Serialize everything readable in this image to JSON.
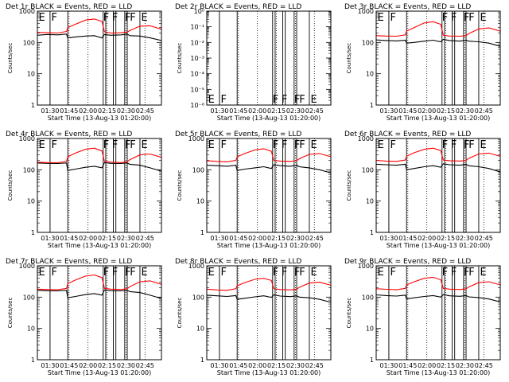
{
  "x_tick_labels": [
    "01:30",
    "01:45",
    "02:00",
    "02:15",
    "02:30",
    "02:45"
  ],
  "y_tick_labels_log": [
    "1",
    "10",
    "100",
    "1000"
  ],
  "y_tick_labels_small": [
    "10⁻⁶",
    "10⁻⁵",
    "10⁻⁴",
    "10⁻³",
    "10⁻²",
    "10⁻¹",
    "10⁰"
  ],
  "colors": {
    "events": "#000000",
    "lld": "#ff0000",
    "axes": "#000000",
    "background": "#ffffff"
  },
  "chart_data": [
    {
      "type": "line",
      "title": "Det 1r BLACK = Events, RED = LLD",
      "xlabel": "Start Time (13-Aug-13 01:20:00)",
      "ylabel": "Counts/sec",
      "y_scale": "log",
      "ylim": [
        1,
        1000
      ],
      "xlim": [
        "01:20",
        "02:58"
      ],
      "grid": "dotted vertical lines at time ticks",
      "flags": [
        "E",
        "F",
        "F",
        "F",
        "F",
        "F",
        "E"
      ],
      "x": [
        "01:20",
        "01:28",
        "01:36",
        "01:43",
        "01:44",
        "01:50",
        "01:58",
        "02:05",
        "02:11",
        "02:13",
        "02:18",
        "02:26",
        "02:31",
        "02:33",
        "02:41",
        "02:49",
        "02:58"
      ],
      "series": [
        {
          "name": "Events",
          "values": [
            170,
            180,
            175,
            185,
            140,
            150,
            160,
            165,
            140,
            180,
            170,
            175,
            185,
            165,
            160,
            140,
            115
          ]
        },
        {
          "name": "LLD",
          "values": [
            210,
            205,
            200,
            225,
            300,
            380,
            520,
            560,
            470,
            220,
            200,
            205,
            215,
            240,
            330,
            340,
            265
          ]
        }
      ]
    },
    {
      "type": "line",
      "title": "Det 2r BLACK = Events, RED = LLD",
      "xlabel": "Start Time (13-Aug-13 01:20:00)",
      "ylabel": "Counts/sec",
      "y_scale": "log",
      "ylim": [
        1e-06,
        1
      ],
      "xlim": [
        "01:20",
        "02:58"
      ],
      "grid": "dotted vertical lines at time ticks",
      "flags": [
        "E",
        "F",
        "F",
        "F",
        "F",
        "F",
        "E"
      ],
      "x": [],
      "series": []
    },
    {
      "type": "line",
      "title": "Det 3r BLACK = Events, RED = LLD",
      "xlabel": "Start Time (13-Aug-13 01:20:00)",
      "ylabel": "Counts/sec",
      "y_scale": "log",
      "ylim": [
        1,
        1000
      ],
      "xlim": [
        "01:20",
        "02:58"
      ],
      "grid": "dotted vertical lines at time ticks",
      "flags": [
        "E",
        "F",
        "F",
        "F",
        "F",
        "F",
        "E"
      ],
      "x": [
        "01:20",
        "01:28",
        "01:36",
        "01:43",
        "01:44",
        "01:50",
        "01:58",
        "02:05",
        "02:11",
        "02:13",
        "02:18",
        "02:26",
        "02:31",
        "02:33",
        "02:41",
        "02:49",
        "02:58"
      ],
      "series": [
        {
          "name": "Events",
          "values": [
            120,
            115,
            112,
            118,
            95,
            100,
            110,
            118,
            105,
            125,
            115,
            110,
            118,
            110,
            105,
            95,
            75
          ]
        },
        {
          "name": "LLD",
          "values": [
            165,
            160,
            158,
            175,
            230,
            300,
            420,
            460,
            380,
            170,
            160,
            158,
            165,
            190,
            270,
            290,
            230
          ]
        }
      ]
    },
    {
      "type": "line",
      "title": "Det 4r BLACK = Events, RED = LLD",
      "xlabel": "Start Time (13-Aug-13 01:20:00)",
      "ylabel": "Counts/sec",
      "y_scale": "log",
      "ylim": [
        1,
        1000
      ],
      "xlim": [
        "01:20",
        "02:58"
      ],
      "grid": "dotted vertical lines at time ticks",
      "flags": [
        "E",
        "F",
        "F",
        "F",
        "F",
        "F",
        "E"
      ],
      "x": [
        "01:20",
        "01:28",
        "01:36",
        "01:43",
        "01:44",
        "01:50",
        "01:58",
        "02:05",
        "02:11",
        "02:13",
        "02:18",
        "02:26",
        "02:31",
        "02:33",
        "02:41",
        "02:49",
        "02:58"
      ],
      "series": [
        {
          "name": "Events",
          "values": [
            165,
            160,
            158,
            165,
            95,
            105,
            120,
            130,
            115,
            170,
            160,
            158,
            165,
            150,
            140,
            115,
            90
          ]
        },
        {
          "name": "LLD",
          "values": [
            175,
            170,
            168,
            185,
            260,
            340,
            450,
            490,
            400,
            185,
            175,
            170,
            180,
            210,
            300,
            320,
            250
          ]
        }
      ]
    },
    {
      "type": "line",
      "title": "Det 5r BLACK = Events, RED = LLD",
      "xlabel": "Start Time (13-Aug-13 01:20:00)",
      "ylabel": "Counts/sec",
      "y_scale": "log",
      "ylim": [
        1,
        1000
      ],
      "xlim": [
        "01:20",
        "02:58"
      ],
      "grid": "dotted vertical lines at time ticks",
      "flags": [
        "E",
        "F",
        "F",
        "F",
        "F",
        "F",
        "E"
      ],
      "x": [
        "01:20",
        "01:28",
        "01:36",
        "01:43",
        "01:44",
        "01:50",
        "01:58",
        "02:05",
        "02:11",
        "02:13",
        "02:18",
        "02:26",
        "02:31",
        "02:33",
        "02:41",
        "02:49",
        "02:58"
      ],
      "series": [
        {
          "name": "Events",
          "values": [
            140,
            135,
            130,
            140,
            95,
            105,
            115,
            125,
            110,
            145,
            135,
            130,
            140,
            125,
            115,
            100,
            80
          ]
        },
        {
          "name": "LLD",
          "values": [
            195,
            185,
            180,
            200,
            260,
            330,
            430,
            470,
            390,
            200,
            190,
            185,
            195,
            225,
            310,
            330,
            260
          ]
        }
      ]
    },
    {
      "type": "line",
      "title": "Det 6r BLACK = Events, RED = LLD",
      "xlabel": "Start Time (13-Aug-13 01:20:00)",
      "ylabel": "Counts/sec",
      "y_scale": "log",
      "ylim": [
        1,
        1000
      ],
      "xlim": [
        "01:20",
        "02:58"
      ],
      "grid": "dotted vertical lines at time ticks",
      "flags": [
        "E",
        "F",
        "F",
        "F",
        "F",
        "F",
        "E"
      ],
      "x": [
        "01:20",
        "01:28",
        "01:36",
        "01:43",
        "01:44",
        "01:50",
        "01:58",
        "02:05",
        "02:11",
        "02:13",
        "02:18",
        "02:26",
        "02:31",
        "02:33",
        "02:41",
        "02:49",
        "02:58"
      ],
      "series": [
        {
          "name": "Events",
          "values": [
            150,
            145,
            140,
            150,
            100,
            110,
            125,
            135,
            120,
            155,
            145,
            140,
            150,
            135,
            125,
            110,
            85
          ]
        },
        {
          "name": "LLD",
          "values": [
            200,
            190,
            185,
            205,
            270,
            350,
            450,
            490,
            410,
            205,
            195,
            190,
            200,
            230,
            320,
            340,
            270
          ]
        }
      ]
    },
    {
      "type": "line",
      "title": "Det 7r BLACK = Events, RED = LLD",
      "xlabel": "Start Time (13-Aug-13 01:20:00)",
      "ylabel": "Counts/sec",
      "y_scale": "log",
      "ylim": [
        1,
        1000
      ],
      "xlim": [
        "01:20",
        "02:58"
      ],
      "grid": "dotted vertical lines at time ticks",
      "flags": [
        "E",
        "F",
        "F",
        "F",
        "F",
        "F",
        "E"
      ],
      "x": [
        "01:20",
        "01:28",
        "01:36",
        "01:43",
        "01:44",
        "01:50",
        "01:58",
        "02:05",
        "02:11",
        "02:13",
        "02:18",
        "02:26",
        "02:31",
        "02:33",
        "02:41",
        "02:49",
        "02:58"
      ],
      "series": [
        {
          "name": "Events",
          "values": [
            165,
            160,
            158,
            165,
            95,
            105,
            120,
            130,
            115,
            170,
            160,
            158,
            165,
            150,
            140,
            115,
            90
          ]
        },
        {
          "name": "LLD",
          "values": [
            180,
            175,
            172,
            190,
            270,
            350,
            470,
            510,
            420,
            190,
            180,
            175,
            185,
            215,
            310,
            330,
            255
          ]
        }
      ]
    },
    {
      "type": "line",
      "title": "Det 8r BLACK = Events, RED = LLD",
      "xlabel": "Start Time (13-Aug-13 01:20:00)",
      "ylabel": "Counts/sec",
      "y_scale": "log",
      "ylim": [
        1,
        1000
      ],
      "xlim": [
        "01:20",
        "02:58"
      ],
      "grid": "dotted vertical lines at time ticks",
      "flags": [
        "E",
        "F",
        "F",
        "F",
        "F",
        "F",
        "E"
      ],
      "x": [
        "01:20",
        "01:28",
        "01:36",
        "01:43",
        "01:44",
        "01:50",
        "01:58",
        "02:05",
        "02:11",
        "02:13",
        "02:18",
        "02:26",
        "02:31",
        "02:33",
        "02:41",
        "02:49",
        "02:58"
      ],
      "series": [
        {
          "name": "Events",
          "values": [
            115,
            110,
            105,
            112,
            85,
            92,
            102,
            110,
            98,
            118,
            108,
            104,
            110,
            100,
            95,
            85,
            68
          ]
        },
        {
          "name": "LLD",
          "values": [
            180,
            170,
            165,
            185,
            230,
            290,
            370,
            400,
            340,
            185,
            175,
            170,
            180,
            205,
            280,
            300,
            240
          ]
        }
      ]
    },
    {
      "type": "line",
      "title": "Det 9r BLACK = Events, RED = LLD",
      "xlabel": "Start Time (13-Aug-13 01:20:00)",
      "ylabel": "Counts/sec",
      "y_scale": "log",
      "ylim": [
        1,
        1000
      ],
      "xlim": [
        "01:20",
        "02:58"
      ],
      "grid": "dotted vertical lines at time ticks",
      "flags": [
        "E",
        "F",
        "F",
        "F",
        "F",
        "F",
        "E"
      ],
      "x": [
        "01:20",
        "01:28",
        "01:36",
        "01:43",
        "01:44",
        "01:50",
        "01:58",
        "02:05",
        "02:11",
        "02:13",
        "02:18",
        "02:26",
        "02:31",
        "02:33",
        "02:41",
        "02:49",
        "02:58"
      ],
      "series": [
        {
          "name": "Events",
          "values": [
            118,
            112,
            108,
            115,
            88,
            95,
            105,
            112,
            100,
            120,
            110,
            106,
            112,
            102,
            97,
            87,
            70
          ]
        },
        {
          "name": "LLD",
          "values": [
            185,
            178,
            172,
            190,
            245,
            310,
            400,
            430,
            360,
            190,
            180,
            175,
            185,
            210,
            290,
            310,
            245
          ]
        }
      ]
    }
  ]
}
